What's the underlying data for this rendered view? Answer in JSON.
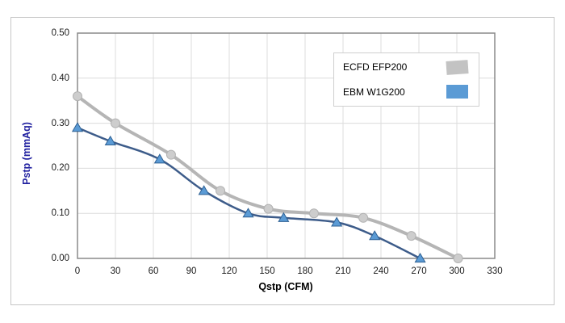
{
  "chart_data": {
    "type": "line",
    "title": "",
    "xlabel": "Qstp (CFM)",
    "ylabel": "Pstp (mmAq)",
    "xlim": [
      0,
      330
    ],
    "ylim": [
      0,
      0.5
    ],
    "x_ticks": [
      0,
      30,
      60,
      90,
      120,
      150,
      180,
      210,
      240,
      270,
      300,
      330
    ],
    "y_ticks": [
      "0.00",
      "0.10",
      "0.20",
      "0.30",
      "0.40",
      "0.50"
    ],
    "grid": true,
    "legend_position": "inside-top-right",
    "series": [
      {
        "name": "ECFD EFP200",
        "color": "#b5b5b5",
        "line_width": 4,
        "marker": "circle",
        "marker_fill": "#cdcdcd",
        "marker_stroke": "#b2b2b2",
        "legend_color": "#c3c3c3",
        "points": [
          [
            0,
            0.36
          ],
          [
            30,
            0.3
          ],
          [
            74,
            0.23
          ],
          [
            113,
            0.15
          ],
          [
            151,
            0.11
          ],
          [
            187,
            0.1
          ],
          [
            226,
            0.09
          ],
          [
            264,
            0.05
          ],
          [
            301,
            0.0
          ]
        ]
      },
      {
        "name": "EBM W1G200",
        "color": "#3d5c8a",
        "line_width": 2.5,
        "marker": "triangle",
        "marker_fill": "#5b9bd5",
        "marker_stroke": "#2e6093",
        "legend_color": "#5b9bd5",
        "points": [
          [
            0,
            0.29
          ],
          [
            26,
            0.26
          ],
          [
            65,
            0.22
          ],
          [
            100,
            0.15
          ],
          [
            135,
            0.1
          ],
          [
            163,
            0.09
          ],
          [
            205,
            0.08
          ],
          [
            235,
            0.05
          ],
          [
            271,
            0.0
          ]
        ]
      }
    ]
  },
  "colors": {
    "background": "#ffffff",
    "frame_border": "#c6c6c6",
    "plot_border": "#8a8a8a",
    "gridline": "#dcdcdc",
    "tick_label": "#1a1a1a",
    "x_axis_title": "#000000",
    "y_axis_title": "#2222a0",
    "legend_border": "#cfcfcf"
  }
}
